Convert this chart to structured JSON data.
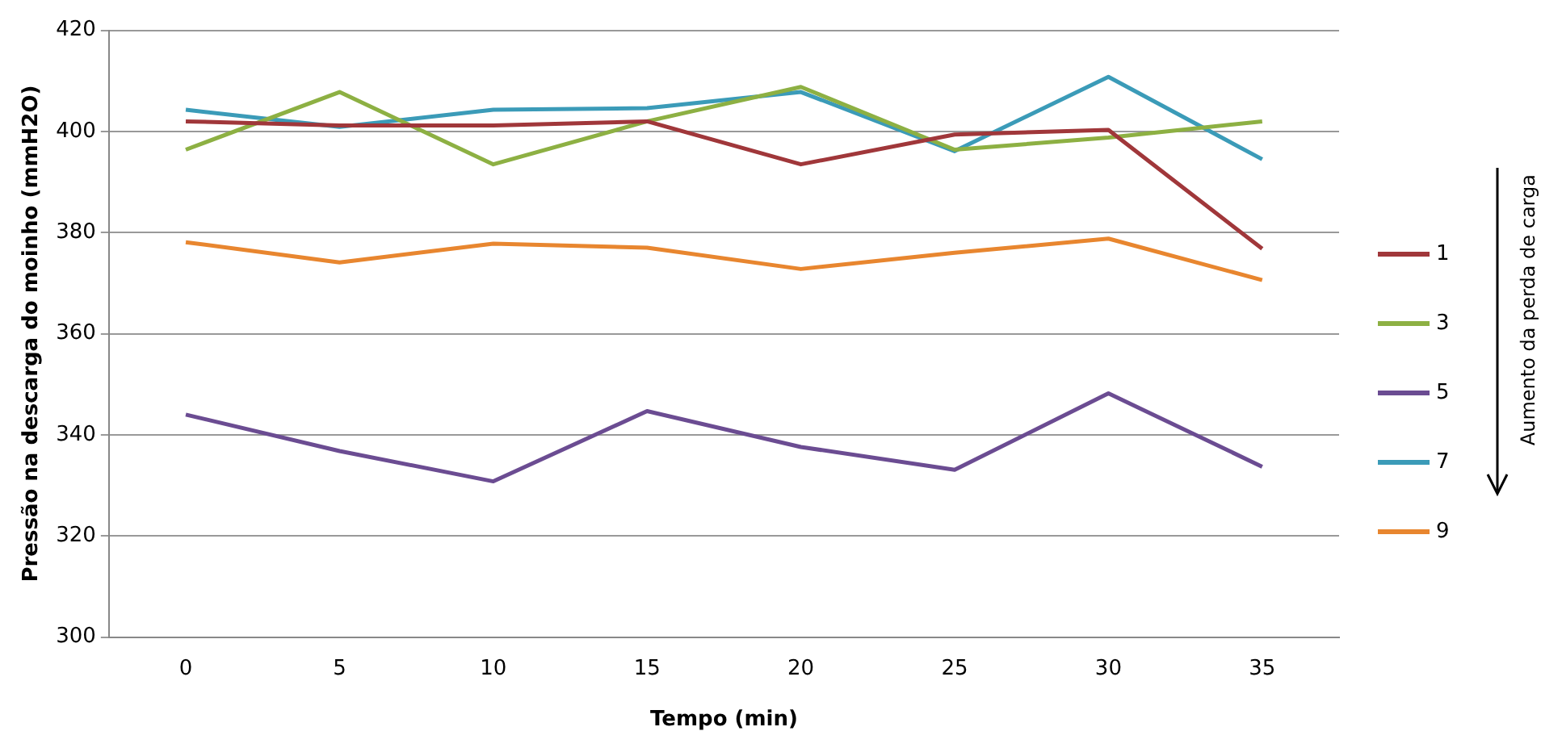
{
  "chart_data": {
    "type": "line",
    "xlabel": "Tempo (min)",
    "ylabel": "Pressão na descarga do moinho (mmH2O)",
    "categories": [
      "0",
      "5",
      "10",
      "15",
      "20",
      "25",
      "30",
      "35"
    ],
    "series": [
      {
        "name": "1",
        "color": "#a0373a",
        "values": [
          402,
          401.2,
          401.2,
          402,
          393.5,
          399.4,
          400.3,
          376.8
        ]
      },
      {
        "name": "3",
        "color": "#8db043",
        "values": [
          396.4,
          407.8,
          393.5,
          402,
          408.8,
          396.4,
          398.8,
          402
        ]
      },
      {
        "name": "5",
        "color": "#6b4c92",
        "values": [
          344,
          336.8,
          330.8,
          344.7,
          337.6,
          333.1,
          348.2,
          333.7
        ]
      },
      {
        "name": "7",
        "color": "#3b9bb8",
        "values": [
          404.3,
          400.9,
          404.3,
          404.6,
          407.8,
          396.1,
          410.8,
          394.5
        ]
      },
      {
        "name": "9",
        "color": "#e8862f",
        "values": [
          378.1,
          374.1,
          377.8,
          377,
          372.8,
          376,
          378.8,
          370.6
        ]
      }
    ],
    "ylim": [
      300,
      420
    ],
    "yticks": [
      300,
      320,
      340,
      360,
      380,
      400,
      420
    ],
    "grid": "y",
    "legend": "right",
    "marker": "none",
    "line_style": "solid",
    "annotations": [
      "Aumento da perda de carga"
    ]
  }
}
